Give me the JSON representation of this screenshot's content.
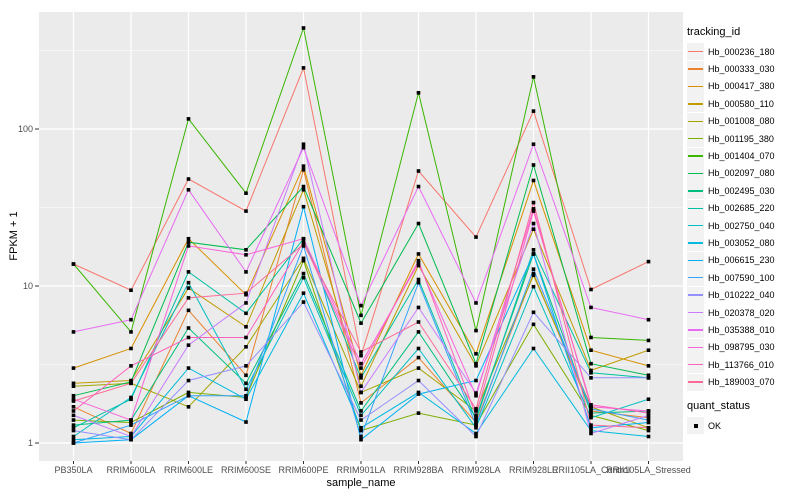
{
  "figure": {
    "y_axis": {
      "label": "FPKM + 1"
    },
    "x_axis": {
      "label": "sample_name"
    },
    "legend": {
      "tracking_title": "tracking_id",
      "quant_title": "quant_status",
      "quant_ok_label": "OK"
    }
  },
  "colors": {
    "panel_bg": "#EBEBEB",
    "grid": "#FFFFFF",
    "axis_text": "#4D4D4D",
    "tick_mark": "#333333",
    "point": "#000000",
    "legend_key_bg": "#F2F2F2"
  },
  "chart_data": {
    "type": "line",
    "title": "",
    "xlabel": "sample_name",
    "ylabel": "FPKM + 1",
    "y_scale": "log10",
    "ylim": [
      0.77,
      556
    ],
    "y_major_ticks": [
      1,
      10,
      100
    ],
    "y_minor_gridlines": [
      3.162,
      31.62,
      316.2
    ],
    "grid": true,
    "legend_position": "right",
    "point_marker": {
      "shape": "square",
      "color": "#000000",
      "legend": "OK"
    },
    "categories": [
      "PB350LA",
      "RRIM600LA",
      "RRIM600LE",
      "RRIM600SE",
      "RRIM600PE",
      "RRIM901LA",
      "RRIM928BA",
      "RRIM928LA",
      "RRIM928LE",
      "RRII105LA_Control",
      "RRII105LA_Stressed"
    ],
    "series": [
      {
        "name": "Hb_000236_180",
        "color": "#F8766D",
        "values": [
          13.8,
          9.4,
          48,
          30,
          245,
          3.6,
          54,
          20.5,
          130,
          9.5,
          14.3
        ]
      },
      {
        "name": "Hb_000333_030",
        "color": "#EA8331",
        "values": [
          1.7,
          1.15,
          7.0,
          2.7,
          55,
          1.8,
          3.5,
          1.35,
          12,
          1.6,
          1.45
        ]
      },
      {
        "name": "Hb_000417_380",
        "color": "#D89000",
        "values": [
          3.0,
          4.0,
          20,
          8.8,
          58,
          2.7,
          16,
          3.7,
          47,
          3.9,
          3.1
        ]
      },
      {
        "name": "Hb_000580_110",
        "color": "#C09B00",
        "values": [
          2.4,
          2.5,
          9.7,
          5.5,
          41,
          2.3,
          13.5,
          3.1,
          23,
          2.9,
          3.9
        ]
      },
      {
        "name": "Hb_001008_080",
        "color": "#A3A500",
        "values": [
          2.3,
          2.4,
          1.7,
          4.1,
          15,
          2.1,
          3.0,
          1.6,
          11.7,
          1.7,
          1.25
        ]
      },
      {
        "name": "Hb_001195_380",
        "color": "#7CAE00",
        "values": [
          1.4,
          1.35,
          2.1,
          1.95,
          14.5,
          1.2,
          1.55,
          1.3,
          5.7,
          1.5,
          1.2
        ]
      },
      {
        "name": "Hb_001404_070",
        "color": "#39B600",
        "values": [
          13.8,
          5.1,
          116,
          39,
          440,
          6.5,
          170,
          5.2,
          215,
          4.7,
          4.5
        ]
      },
      {
        "name": "Hb_002097_080",
        "color": "#00BB4E",
        "values": [
          2.0,
          2.45,
          19,
          17,
          43,
          5.8,
          25,
          3.2,
          59,
          3.2,
          2.7
        ]
      },
      {
        "name": "Hb_002495_030",
        "color": "#00BF7D",
        "values": [
          1.3,
          1.4,
          5.4,
          2.4,
          12,
          1.6,
          5.1,
          1.45,
          16,
          1.55,
          1.6
        ]
      },
      {
        "name": "Hb_002685_220",
        "color": "#00C1A3",
        "values": [
          1.25,
          1.9,
          12.3,
          6.7,
          20,
          2.6,
          11,
          1.4,
          17,
          2.8,
          2.6
        ]
      },
      {
        "name": "Hb_002750_040",
        "color": "#00BFC4",
        "values": [
          1.1,
          1.95,
          10.5,
          2.2,
          11.3,
          1.5,
          4.0,
          1.25,
          9.9,
          1.45,
          1.9
        ]
      },
      {
        "name": "Hb_003052_080",
        "color": "#00BAE0",
        "values": [
          1.05,
          1.1,
          3.0,
          1.9,
          9.0,
          1.25,
          2.1,
          1.15,
          4.0,
          1.2,
          1.1
        ]
      },
      {
        "name": "Hb_006615_230",
        "color": "#00B0F6",
        "values": [
          1.0,
          1.05,
          2.0,
          1.36,
          32,
          1.05,
          2.05,
          2.5,
          16,
          1.25,
          1.35
        ]
      },
      {
        "name": "Hb_007590_100",
        "color": "#35A2FF",
        "values": [
          1.0,
          1.3,
          2.0,
          2.0,
          18,
          1.1,
          10.5,
          1.3,
          12.8,
          1.65,
          1.4
        ]
      },
      {
        "name": "Hb_010222_040",
        "color": "#9590FF",
        "values": [
          1.2,
          1.05,
          2.5,
          3.1,
          7.9,
          1.4,
          2.5,
          1.1,
          6.8,
          2.6,
          2.6
        ]
      },
      {
        "name": "Hb_020378_020",
        "color": "#C77CFF",
        "values": [
          1.5,
          1.1,
          4.2,
          7.8,
          80,
          2.1,
          7.3,
          2.08,
          25,
          1.15,
          1.5
        ]
      },
      {
        "name": "Hb_035388_010",
        "color": "#E76BF3",
        "values": [
          5.1,
          6.1,
          41,
          12.3,
          76,
          7.5,
          43,
          7.8,
          80,
          7.3,
          6.1
        ]
      },
      {
        "name": "Hb_098795_030",
        "color": "#FA62DB",
        "values": [
          1.9,
          1.4,
          18,
          15.8,
          20,
          3.2,
          14,
          2.0,
          31,
          1.7,
          1.6
        ]
      },
      {
        "name": "Hb_113766_010",
        "color": "#FF62BC",
        "values": [
          1.6,
          3.1,
          4.7,
          4.7,
          19,
          3.0,
          14.5,
          1.5,
          30,
          1.75,
          1.55
        ]
      },
      {
        "name": "Hb_189003_070",
        "color": "#FF6A98",
        "values": [
          1.85,
          2.4,
          8.4,
          9.0,
          18.5,
          3.8,
          5.9,
          1.65,
          34,
          1.3,
          1.25
        ]
      }
    ]
  }
}
